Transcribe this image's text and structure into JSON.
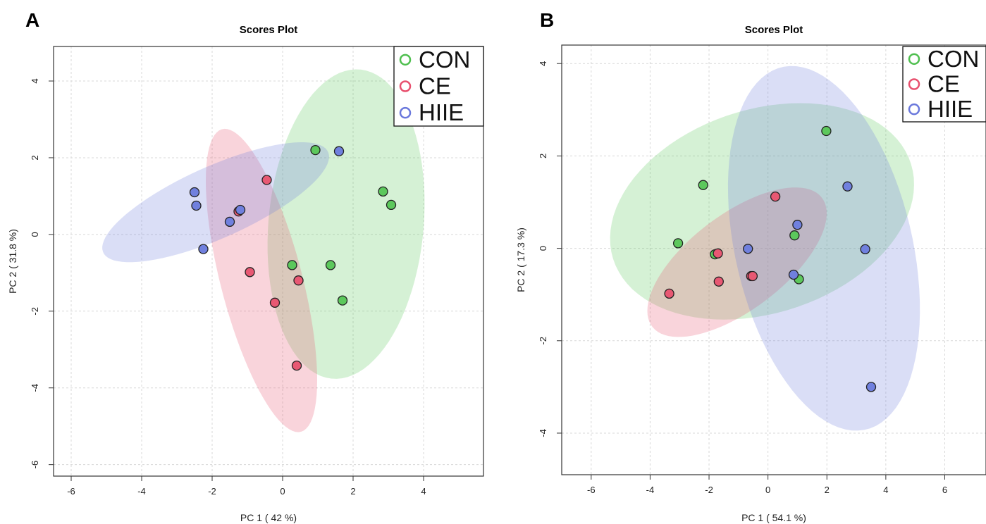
{
  "chart_data": [
    {
      "type": "scatter",
      "panel_label": "A",
      "title": "Scores Plot",
      "xlabel": "PC 1 ( 42 %)",
      "ylabel": "PC 2 ( 31.8 %)",
      "xlim": [
        -6.5,
        5.7
      ],
      "ylim": [
        -6.3,
        4.9
      ],
      "xticks": [
        -6,
        -4,
        -2,
        0,
        2,
        4
      ],
      "yticks": [
        -6,
        -4,
        -2,
        0,
        2,
        4
      ],
      "grid": true,
      "legend_position": "top-right",
      "legend": [
        {
          "label": "CON",
          "color": "#4fbf4f"
        },
        {
          "label": "CE",
          "color": "#e8506e"
        },
        {
          "label": "HIIE",
          "color": "#6a78dc"
        }
      ],
      "series": [
        {
          "name": "CON",
          "color": "#5cc85c",
          "points": [
            [
              0.93,
              2.2
            ],
            [
              2.85,
              1.12
            ],
            [
              3.08,
              0.77
            ],
            [
              0.27,
              -0.8
            ],
            [
              1.36,
              -0.8
            ],
            [
              1.7,
              -1.72
            ]
          ],
          "ellipse": {
            "center": [
              1.8,
              0.27
            ],
            "half_axis_1": 4.05,
            "half_axis_2": 2.2,
            "angle_deg": 84
          }
        },
        {
          "name": "CE",
          "color": "#e85873",
          "points": [
            [
              -0.45,
              1.42
            ],
            [
              -1.25,
              0.6
            ],
            [
              -0.93,
              -0.98
            ],
            [
              -0.22,
              -1.78
            ],
            [
              0.45,
              -1.2
            ],
            [
              0.4,
              -3.42
            ]
          ],
          "ellipse": {
            "center": [
              -0.6,
              -1.2
            ],
            "half_axis_1": 4.1,
            "half_axis_2": 1.15,
            "angle_deg": -74
          }
        },
        {
          "name": "HIIE",
          "color": "#7080de",
          "points": [
            [
              1.6,
              2.17
            ],
            [
              -2.5,
              1.1
            ],
            [
              -2.45,
              0.75
            ],
            [
              -1.2,
              0.64
            ],
            [
              -1.5,
              0.33
            ],
            [
              -2.25,
              -0.38
            ]
          ],
          "ellipse": {
            "center": [
              -1.9,
              0.84
            ],
            "half_axis_1": 3.45,
            "half_axis_2": 0.95,
            "angle_deg": 22
          }
        }
      ]
    },
    {
      "type": "scatter",
      "panel_label": "B",
      "title": "Scores Plot",
      "xlabel": "PC 1 ( 54.1 %)",
      "ylabel": "PC 2 ( 17.3 %)",
      "xlim": [
        -7.0,
        7.4
      ],
      "ylim": [
        -4.9,
        4.4
      ],
      "xticks": [
        -6,
        -4,
        -2,
        0,
        2,
        4,
        6
      ],
      "yticks": [
        -4,
        -2,
        0,
        2,
        4
      ],
      "grid": true,
      "legend_position": "top-right",
      "legend": [
        {
          "label": "CON",
          "color": "#4fbf4f"
        },
        {
          "label": "CE",
          "color": "#e8506e"
        },
        {
          "label": "HIIE",
          "color": "#6a78dc"
        }
      ],
      "series": [
        {
          "name": "CON",
          "color": "#5cc85c",
          "points": [
            [
              1.98,
              2.54
            ],
            [
              -2.2,
              1.37
            ],
            [
              -3.05,
              0.11
            ],
            [
              -1.8,
              -0.13
            ],
            [
              0.9,
              0.28
            ],
            [
              1.05,
              -0.67
            ]
          ],
          "ellipse": {
            "center": [
              -0.2,
              0.8
            ],
            "half_axis_1": 5.2,
            "half_axis_2": 2.25,
            "angle_deg": 8
          }
        },
        {
          "name": "CE",
          "color": "#e85873",
          "points": [
            [
              0.25,
              1.12
            ],
            [
              -1.7,
              -0.11
            ],
            [
              -3.35,
              -0.98
            ],
            [
              -1.67,
              -0.72
            ],
            [
              -0.57,
              -0.6
            ],
            [
              -0.52,
              -0.6
            ]
          ],
          "ellipse": {
            "center": [
              -1.05,
              -0.3
            ],
            "half_axis_1": 3.25,
            "half_axis_2": 1.15,
            "angle_deg": 22
          }
        },
        {
          "name": "HIIE",
          "color": "#7080de",
          "points": [
            [
              2.7,
              1.34
            ],
            [
              1.0,
              0.51
            ],
            [
              -0.68,
              -0.01
            ],
            [
              3.3,
              -0.02
            ],
            [
              0.87,
              -0.57
            ],
            [
              3.5,
              -3.0
            ]
          ],
          "ellipse": {
            "center": [
              1.9,
              0.0
            ],
            "half_axis_1": 4.25,
            "half_axis_2": 2.85,
            "angle_deg": -60
          }
        }
      ]
    }
  ]
}
